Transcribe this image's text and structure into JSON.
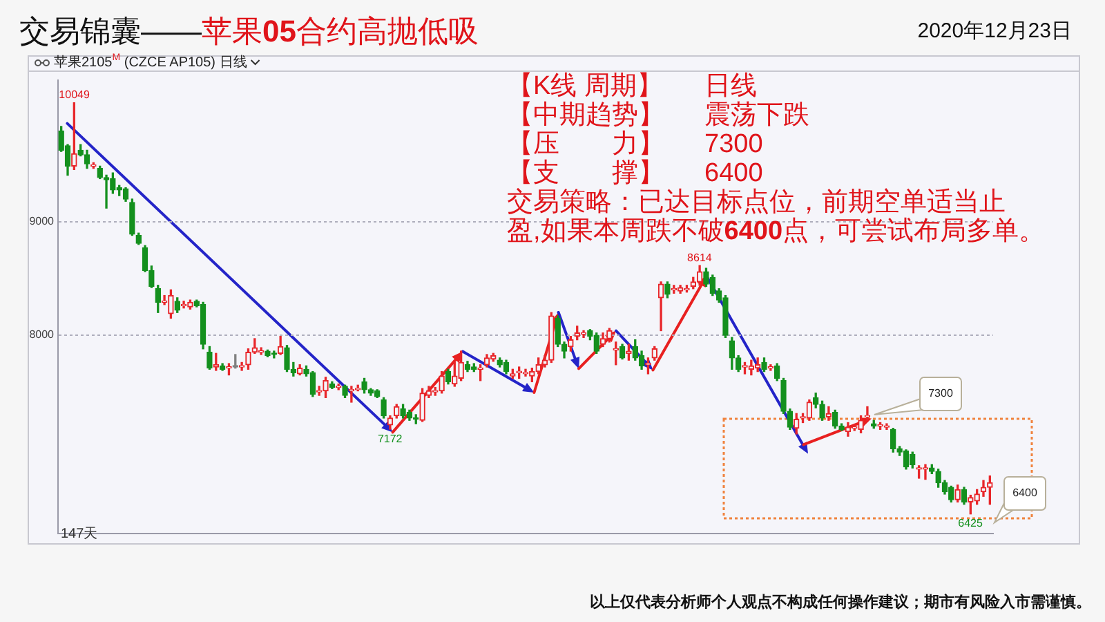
{
  "chart_data": {
    "type": "candlestick",
    "title": "交易锦囊——苹果05合约高抛低吸",
    "subtitle": "苹果2105$^{M}$ (CZCE AP105) 日线",
    "annotations": [
      "2020年12月23日",
      "【K线 周期】   日线",
      "【中期趋势】   震荡下跌",
      "【压　　力】   7300",
      "【支　　撑】   6400",
      "交易策略：已达目标点位，前期空单适当止",
      "盈,如果本周跌不破6400点，可尝试布局多单。",
      "147天",
      "7300",
      "6400",
      "以上仅代表分析师个人观点不构成任何操作建议；期市有风险入市需谨慎。",
      {
        "text": "10049",
        "y": 10049
      },
      {
        "text": "7172",
        "y": 7172
      },
      {
        "text": "8614",
        "y": 8614
      },
      {
        "text": "6425",
        "y": 6425
      }
    ],
    "categories": [
      null,
      null,
      null,
      null,
      null,
      null,
      null,
      null,
      null,
      null,
      null,
      null,
      null,
      null,
      null,
      null,
      null,
      null,
      null,
      null,
      null,
      null,
      null,
      null,
      null,
      null,
      null,
      null,
      null,
      null,
      null,
      null,
      null,
      null,
      null,
      null,
      null,
      null,
      null,
      null,
      null,
      null,
      null,
      null,
      null,
      null,
      null,
      null,
      null,
      null,
      null,
      null,
      null,
      null,
      null,
      null,
      null,
      null,
      null,
      null,
      null,
      null,
      null,
      null,
      null,
      null,
      null,
      null,
      null,
      null,
      null,
      null,
      null,
      null,
      null,
      null,
      null,
      null,
      null,
      null,
      null,
      null,
      null,
      null,
      null,
      null,
      null,
      null,
      null,
      null,
      null,
      null,
      null,
      null,
      null,
      null,
      null,
      null,
      null,
      null,
      null,
      null,
      null,
      null,
      null,
      null,
      null,
      null,
      null,
      null,
      null,
      null,
      null,
      null,
      null,
      null,
      null,
      null,
      null,
      null,
      null,
      null,
      null,
      null,
      null,
      null,
      null,
      null,
      null,
      null,
      null,
      null,
      null,
      null,
      null,
      null,
      null,
      null,
      null,
      null,
      null,
      null,
      null,
      null,
      null
    ],
    "ohlc": [
      [
        9800,
        9840,
        9620,
        9630
      ],
      [
        9670,
        9680,
        9410,
        9490
      ],
      [
        9490,
        10049,
        9460,
        9600
      ],
      [
        9630,
        9680,
        9580,
        9590
      ],
      [
        9590,
        9630,
        9470,
        9510
      ],
      [
        9490,
        9520,
        9470,
        9500
      ],
      [
        9470,
        9490,
        9380,
        9390
      ],
      [
        9390,
        9410,
        9120,
        9370
      ],
      [
        9380,
        9430,
        9250,
        9280
      ],
      [
        9300,
        9320,
        9230,
        9280
      ],
      [
        9290,
        9300,
        9180,
        9200
      ],
      [
        9170,
        9200,
        8880,
        8890
      ],
      [
        8880,
        8900,
        8800,
        8810
      ],
      [
        8770,
        8790,
        8560,
        8570
      ],
      [
        8570,
        8610,
        8420,
        8430
      ],
      [
        8410,
        8440,
        8200,
        8290
      ],
      [
        8290,
        8350,
        8270,
        8300
      ],
      [
        8190,
        8400,
        8150,
        8350
      ],
      [
        8300,
        8330,
        8200,
        8220
      ],
      [
        8260,
        8300,
        8240,
        8270
      ],
      [
        8250,
        8310,
        8230,
        8290
      ],
      [
        8300,
        8310,
        8250,
        8260
      ],
      [
        8270,
        8290,
        7880,
        7920
      ],
      [
        7850,
        7900,
        7700,
        7710
      ],
      [
        7720,
        7840,
        7690,
        7740
      ],
      [
        7730,
        7750,
        7690,
        7700
      ],
      [
        7710,
        7750,
        7650,
        7720
      ],
      [
        7720,
        7830,
        7710,
        7720
      ],
      [
        7720,
        7760,
        7690,
        7730
      ],
      [
        7740,
        7880,
        7700,
        7850
      ],
      [
        7850,
        7970,
        7840,
        7890
      ],
      [
        7850,
        7890,
        7830,
        7860
      ],
      [
        7860,
        7870,
        7810,
        7820
      ],
      [
        7840,
        7860,
        7800,
        7830
      ],
      [
        7840,
        7990,
        7830,
        7900
      ],
      [
        7890,
        7910,
        7680,
        7700
      ],
      [
        7700,
        7760,
        7640,
        7670
      ],
      [
        7660,
        7740,
        7650,
        7710
      ],
      [
        7700,
        7730,
        7640,
        7660
      ],
      [
        7670,
        7680,
        7460,
        7480
      ],
      [
        7500,
        7550,
        7470,
        7510
      ],
      [
        7510,
        7630,
        7450,
        7600
      ],
      [
        7570,
        7590,
        7530,
        7540
      ],
      [
        7540,
        7570,
        7520,
        7550
      ],
      [
        7550,
        7560,
        7450,
        7470
      ],
      [
        7510,
        7550,
        7410,
        7520
      ],
      [
        7520,
        7560,
        7510,
        7530
      ],
      [
        7590,
        7620,
        7490,
        7520
      ],
      [
        7520,
        7530,
        7470,
        7490
      ],
      [
        7510,
        7520,
        7450,
        7460
      ],
      [
        7430,
        7450,
        7270,
        7290
      ],
      [
        7210,
        7290,
        7172,
        7270
      ],
      [
        7290,
        7390,
        7270,
        7370
      ],
      [
        7350,
        7390,
        7270,
        7290
      ],
      [
        7320,
        7340,
        7250,
        7270
      ],
      [
        7270,
        7300,
        7220,
        7260
      ],
      [
        7250,
        7530,
        7240,
        7490
      ],
      [
        7470,
        7550,
        7450,
        7510
      ],
      [
        7500,
        7540,
        7470,
        7510
      ],
      [
        7510,
        7680,
        7490,
        7640
      ],
      [
        7680,
        7700,
        7570,
        7590
      ],
      [
        7570,
        7760,
        7550,
        7640
      ],
      [
        7620,
        7860,
        7600,
        7760
      ],
      [
        7740,
        7770,
        7680,
        7700
      ],
      [
        7720,
        7750,
        7680,
        7700
      ],
      [
        7700,
        7740,
        7600,
        7710
      ],
      [
        7740,
        7830,
        7720,
        7800
      ],
      [
        7790,
        7840,
        7770,
        7820
      ],
      [
        7780,
        7800,
        7720,
        7740
      ],
      [
        7760,
        7780,
        7660,
        7680
      ],
      [
        7640,
        7700,
        7620,
        7660
      ],
      [
        7670,
        7720,
        7620,
        7680
      ],
      [
        7660,
        7700,
        7640,
        7670
      ],
      [
        7640,
        7710,
        7590,
        7680
      ],
      [
        7680,
        7800,
        7660,
        7740
      ],
      [
        7740,
        7820,
        7720,
        7780
      ],
      [
        7780,
        8200,
        7760,
        8170
      ],
      [
        8150,
        8170,
        7900,
        7920
      ],
      [
        7920,
        7940,
        7800,
        7860
      ],
      [
        7900,
        7990,
        7860,
        7960
      ],
      [
        7990,
        8080,
        7960,
        8020
      ],
      [
        8010,
        8040,
        7980,
        8020
      ],
      [
        8040,
        8050,
        7960,
        7990
      ],
      [
        8000,
        8020,
        7840,
        7860
      ],
      [
        7920,
        8020,
        7900,
        7970
      ],
      [
        7970,
        8060,
        7940,
        8040
      ],
      [
        7870,
        7940,
        7740,
        7880
      ],
      [
        7900,
        7920,
        7790,
        7800
      ],
      [
        7840,
        7920,
        7780,
        7860
      ],
      [
        7900,
        7960,
        7780,
        7800
      ],
      [
        7820,
        7860,
        7700,
        7730
      ],
      [
        7740,
        7800,
        7660,
        7750
      ],
      [
        7800,
        7900,
        7780,
        7880
      ],
      [
        8330,
        8470,
        8040,
        8450
      ],
      [
        8450,
        8470,
        8330,
        8360
      ],
      [
        8400,
        8440,
        8370,
        8410
      ],
      [
        8390,
        8440,
        8370,
        8420
      ],
      [
        8400,
        8440,
        8380,
        8410
      ],
      [
        8430,
        8510,
        8410,
        8470
      ],
      [
        8470,
        8614,
        8440,
        8560
      ],
      [
        8560,
        8590,
        8430,
        8450
      ],
      [
        8510,
        8530,
        8350,
        8370
      ],
      [
        8390,
        8410,
        8290,
        8310
      ],
      [
        8330,
        8350,
        7980,
        8000
      ],
      [
        7950,
        7980,
        7700,
        7800
      ],
      [
        7800,
        7820,
        7680,
        7700
      ],
      [
        7720,
        7760,
        7660,
        7730
      ],
      [
        7700,
        7780,
        7650,
        7730
      ],
      [
        7710,
        7800,
        7680,
        7740
      ],
      [
        7760,
        7800,
        7680,
        7700
      ],
      [
        7710,
        7740,
        7690,
        7720
      ],
      [
        7730,
        7750,
        7600,
        7620
      ],
      [
        7600,
        7620,
        7310,
        7330
      ],
      [
        7330,
        7350,
        7170,
        7190
      ],
      [
        7180,
        7310,
        7130,
        7260
      ],
      [
        7270,
        7310,
        7230,
        7280
      ],
      [
        7270,
        7430,
        7250,
        7410
      ],
      [
        7450,
        7490,
        7360,
        7390
      ],
      [
        7390,
        7420,
        7250,
        7270
      ],
      [
        7280,
        7370,
        7250,
        7310
      ],
      [
        7320,
        7340,
        7180,
        7200
      ],
      [
        7200,
        7220,
        7160,
        7170
      ],
      [
        7150,
        7230,
        7110,
        7190
      ],
      [
        7180,
        7210,
        7160,
        7190
      ],
      [
        7170,
        7290,
        7140,
        7250
      ],
      [
        7280,
        7370,
        7250,
        7290
      ],
      [
        7220,
        7250,
        7180,
        7200
      ],
      [
        7200,
        7230,
        7170,
        7210
      ],
      [
        7190,
        7220,
        7170,
        7200
      ],
      [
        7170,
        7180,
        6970,
        7000
      ],
      [
        7000,
        7020,
        6940,
        6970
      ],
      [
        6980,
        6990,
        6820,
        6840
      ],
      [
        6950,
        6970,
        6830,
        6860
      ],
      [
        6820,
        6850,
        6740,
        6830
      ],
      [
        6820,
        6860,
        6730,
        6830
      ],
      [
        6830,
        6860,
        6780,
        6800
      ],
      [
        6800,
        6820,
        6660,
        6700
      ],
      [
        6700,
        6720,
        6600,
        6620
      ],
      [
        6660,
        6670,
        6530,
        6550
      ],
      [
        6550,
        6680,
        6530,
        6640
      ],
      [
        6640,
        6660,
        6510,
        6530
      ],
      [
        6530,
        6590,
        6425,
        6570
      ],
      [
        6540,
        6640,
        6510,
        6600
      ],
      [
        6620,
        6720,
        6580,
        6660
      ],
      [
        6660,
        6760,
        6510,
        6700
      ]
    ],
    "colors": [
      "#14901e",
      "#14901e",
      "#e8262a",
      "#14901e",
      "#14901e",
      "#e8262a",
      "#14901e",
      "#14901e",
      "#14901e",
      "#14901e",
      "#14901e",
      "#14901e",
      "#14901e",
      "#14901e",
      "#14901e",
      "#14901e",
      "#e8262a",
      "#e8262a",
      "#14901e",
      "#e8262a",
      "#e8262a",
      "#14901e",
      "#14901e",
      "#14901e",
      "#e8262a",
      "#14901e",
      "#e8262a",
      "#808080",
      "#e8262a",
      "#e8262a",
      "#e8262a",
      "#e8262a",
      "#14901e",
      "#14901e",
      "#e8262a",
      "#14901e",
      "#14901e",
      "#e8262a",
      "#14901e",
      "#14901e",
      "#e8262a",
      "#e8262a",
      "#14901e",
      "#e8262a",
      "#14901e",
      "#e8262a",
      "#e8262a",
      "#14901e",
      "#14901e",
      "#14901e",
      "#14901e",
      "#e8262a",
      "#e8262a",
      "#14901e",
      "#14901e",
      "#14901e",
      "#e8262a",
      "#e8262a",
      "#e8262a",
      "#e8262a",
      "#14901e",
      "#e8262a",
      "#e8262a",
      "#14901e",
      "#14901e",
      "#e8262a",
      "#e8262a",
      "#e8262a",
      "#14901e",
      "#14901e",
      "#e8262a",
      "#e8262a",
      "#e8262a",
      "#e8262a",
      "#e8262a",
      "#e8262a",
      "#e8262a",
      "#14901e",
      "#14901e",
      "#e8262a",
      "#e8262a",
      "#e8262a",
      "#14901e",
      "#14901e",
      "#e8262a",
      "#e8262a",
      "#e8262a",
      "#14901e",
      "#e8262a",
      "#14901e",
      "#14901e",
      "#e8262a",
      "#e8262a",
      "#e8262a",
      "#14901e",
      "#e8262a",
      "#e8262a",
      "#e8262a",
      "#e8262a",
      "#e8262a",
      "#14901e",
      "#14901e",
      "#14901e",
      "#14901e",
      "#14901e",
      "#14901e",
      "#e8262a",
      "#e8262a",
      "#e8262a",
      "#14901e",
      "#e8262a",
      "#14901e",
      "#14901e",
      "#14901e",
      "#e8262a",
      "#e8262a",
      "#e8262a",
      "#14901e",
      "#14901e",
      "#e8262a",
      "#14901e",
      "#14901e",
      "#e8262a",
      "#e8262a",
      "#e8262a",
      "#e8262a",
      "#14901e",
      "#e8262a",
      "#e8262a",
      "#14901e",
      "#14901e",
      "#14901e",
      "#14901e",
      "#e8262a",
      "#e8262a",
      "#14901e",
      "#14901e",
      "#14901e",
      "#14901e",
      "#e8262a",
      "#14901e",
      "#e8262a",
      "#e8262a",
      "#e8262a",
      "#e8262a"
    ],
    "ylim": [
      6250,
      10250
    ],
    "yticks": [
      8000,
      9000
    ],
    "grid": "y",
    "tick_labels": "y"
  }
}
